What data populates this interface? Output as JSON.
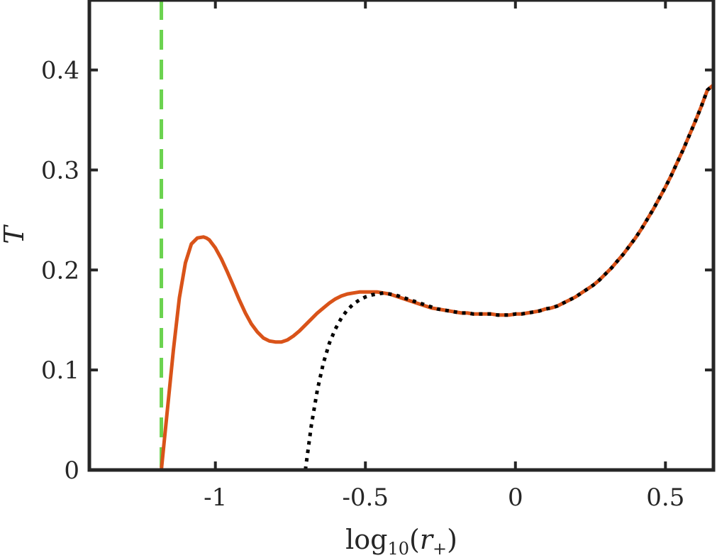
{
  "chart_data": {
    "type": "line",
    "xlabel": "log10(r+)",
    "xlabel_parts": {
      "func": "log",
      "base": "10",
      "arg": "r",
      "arg_sub": "+"
    },
    "ylabel": "T",
    "xlim": [
      -1.42,
      0.66
    ],
    "ylim": [
      0,
      0.47
    ],
    "grid": false,
    "x_ticks": [
      -1,
      -0.5,
      0,
      0.5
    ],
    "x_tick_labels": [
      "-1",
      "-0.5",
      "0",
      "0.5"
    ],
    "y_ticks": [
      0,
      0.1,
      0.2,
      0.3,
      0.4
    ],
    "y_tick_labels": [
      "0",
      "0.1",
      "0.2",
      "0.3",
      "0.4"
    ],
    "series": [
      {
        "style": "solid",
        "color": "#D95319",
        "x": [
          -1.18,
          -1.16,
          -1.14,
          -1.12,
          -1.1,
          -1.08,
          -1.06,
          -1.04,
          -1.03,
          -1.02,
          -1.0,
          -0.98,
          -0.96,
          -0.94,
          -0.92,
          -0.9,
          -0.88,
          -0.86,
          -0.84,
          -0.82,
          -0.8,
          -0.78,
          -0.76,
          -0.74,
          -0.72,
          -0.7,
          -0.68,
          -0.66,
          -0.64,
          -0.62,
          -0.6,
          -0.58,
          -0.56,
          -0.54,
          -0.52,
          -0.5,
          -0.48,
          -0.46,
          -0.44,
          -0.42,
          -0.4,
          -0.38,
          -0.36,
          -0.34,
          -0.32,
          -0.3,
          -0.28,
          -0.26,
          -0.24,
          -0.22,
          -0.2,
          -0.18,
          -0.16,
          -0.14,
          -0.12,
          -0.1,
          -0.08,
          -0.06,
          -0.04,
          -0.02,
          0.0,
          0.02,
          0.04,
          0.06,
          0.08,
          0.1,
          0.12,
          0.14,
          0.16,
          0.18,
          0.2,
          0.22,
          0.24,
          0.26,
          0.28,
          0.3,
          0.32,
          0.34,
          0.36,
          0.38,
          0.4,
          0.42,
          0.44,
          0.46,
          0.48,
          0.5,
          0.52,
          0.54,
          0.56,
          0.58,
          0.6,
          0.62,
          0.64,
          0.66
        ],
        "y": [
          0.0,
          0.06,
          0.12,
          0.172,
          0.207,
          0.226,
          0.232,
          0.233,
          0.232,
          0.23,
          0.222,
          0.211,
          0.198,
          0.184,
          0.17,
          0.157,
          0.146,
          0.138,
          0.132,
          0.129,
          0.128,
          0.128,
          0.13,
          0.134,
          0.139,
          0.145,
          0.151,
          0.157,
          0.162,
          0.167,
          0.171,
          0.174,
          0.176,
          0.177,
          0.178,
          0.178,
          0.178,
          0.178,
          0.177,
          0.176,
          0.174,
          0.172,
          0.17,
          0.168,
          0.166,
          0.164,
          0.162,
          0.161,
          0.16,
          0.159,
          0.158,
          0.157,
          0.157,
          0.156,
          0.156,
          0.156,
          0.156,
          0.155,
          0.155,
          0.155,
          0.156,
          0.156,
          0.157,
          0.158,
          0.159,
          0.161,
          0.162,
          0.164,
          0.167,
          0.17,
          0.173,
          0.177,
          0.181,
          0.185,
          0.19,
          0.196,
          0.202,
          0.209,
          0.216,
          0.224,
          0.232,
          0.241,
          0.251,
          0.261,
          0.272,
          0.283,
          0.295,
          0.308,
          0.321,
          0.335,
          0.349,
          0.364,
          0.38,
          0.385
        ]
      },
      {
        "style": "dotted",
        "color": "#000000",
        "x": [
          -0.7,
          -0.68,
          -0.66,
          -0.64,
          -0.62,
          -0.6,
          -0.58,
          -0.56,
          -0.54,
          -0.52,
          -0.5,
          -0.48,
          -0.46,
          -0.44,
          -0.42,
          -0.4,
          -0.38,
          -0.36,
          -0.34,
          -0.32,
          -0.3,
          -0.28,
          -0.26,
          -0.24,
          -0.22,
          -0.2,
          -0.18,
          -0.16,
          -0.14,
          -0.12,
          -0.1,
          -0.08,
          -0.06,
          -0.04,
          -0.02,
          0.0,
          0.02,
          0.04,
          0.06,
          0.08,
          0.1,
          0.12,
          0.14,
          0.16,
          0.18,
          0.2,
          0.22,
          0.24,
          0.26,
          0.28,
          0.3,
          0.32,
          0.34,
          0.36,
          0.38,
          0.4,
          0.42,
          0.44,
          0.46,
          0.48,
          0.5,
          0.52,
          0.54,
          0.56,
          0.58,
          0.6,
          0.62,
          0.64,
          0.66
        ],
        "y": [
          0.0,
          0.045,
          0.08,
          0.107,
          0.127,
          0.141,
          0.152,
          0.16,
          0.166,
          0.17,
          0.173,
          0.175,
          0.176,
          0.177,
          0.176,
          0.175,
          0.173,
          0.171,
          0.169,
          0.167,
          0.165,
          0.163,
          0.161,
          0.16,
          0.159,
          0.158,
          0.157,
          0.157,
          0.156,
          0.156,
          0.156,
          0.156,
          0.155,
          0.155,
          0.155,
          0.156,
          0.156,
          0.157,
          0.158,
          0.159,
          0.161,
          0.162,
          0.164,
          0.167,
          0.17,
          0.173,
          0.177,
          0.181,
          0.185,
          0.19,
          0.196,
          0.202,
          0.209,
          0.216,
          0.224,
          0.232,
          0.241,
          0.251,
          0.261,
          0.272,
          0.283,
          0.295,
          0.308,
          0.321,
          0.335,
          0.349,
          0.364,
          0.38,
          0.385
        ]
      }
    ],
    "vlines": [
      {
        "x": -1.18,
        "style": "dashed",
        "color": "#6BD34F"
      }
    ]
  }
}
